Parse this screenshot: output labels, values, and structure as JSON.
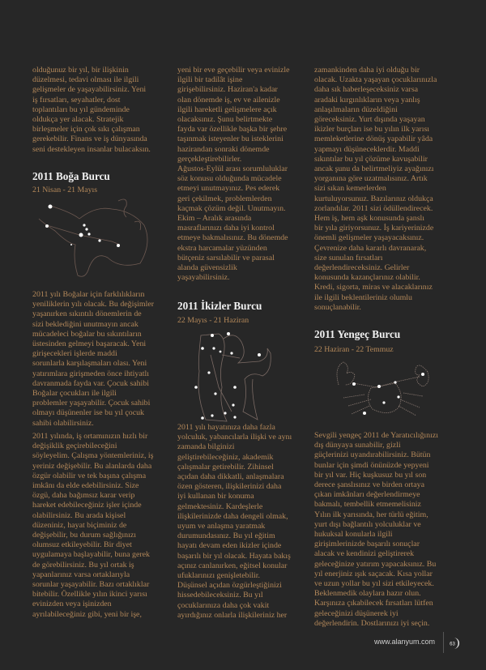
{
  "col1": {
    "intro": [
      "olduğunuz bir yıl, bir ilişkinin",
      "düzelmesi, tedavi olması ile ilgili",
      "gelişmeler de yaşayabilirsiniz.  Yeni",
      "iş fırsatları, seyahatler, dost",
      "toplantıları bu yıl gündeminde",
      "oldukça yer alacak. Stratejik",
      "birleşmeler için çok sıkı çalışman",
      "gerekebilir. Finans ve iş dünyasında",
      "seni destekleyen insanlar bulacaksın."
    ],
    "heading": "2011 Boğa Burcu",
    "dates": "21 Nisan - 21 Mayıs",
    "p1": [
      "2011 yılı Boğalar için farklılıkların",
      "yeniliklerin yılı olacak. Bu değişimler",
      "yaşanırken sıkıntılı dönemlerin de",
      "sizi beklediğini unutmayın ancak",
      "mücadeleci boğalar bu sıkıntıların",
      "üstesinden gelmeyi başaracak. Yeni",
      "girişecekleri işlerde maddi",
      "sorunlarla karşılaşmaları olası. Yeni",
      "yatırımlara girişmeden önce ihtiyatlı",
      "davranmada fayda var. Çocuk sahibi",
      "Boğalar çocukları ile ilgili",
      "problemler yaşayabilir.  Çocuk sahibi",
      "olmayı düşünenler ise bu yıl çocuk",
      "sahibi olabilirsiniz."
    ],
    "p2": [
      "2011 yılında, iş ortamınızın hızlı bir",
      "değişiklik geçirebileceğini",
      "söyleyelim. Çalışma yöntemleriniz, iş",
      "yeriniz değişebilir. Bu alanlarda daha",
      "özgür olabilir ve tek başına çalışma",
      "imkânı da elde edebilirsiniz. Size",
      "özgü, daha bağımsız karar verip",
      "hareket edebileceğiniz işler içinde",
      "olabilirsiniz. Bu arada kişisel",
      "düzeniniz,  hayat biçiminiz de",
      "değişebilir, bu durum sağlığınızı",
      "olumsuz etkileyebilir. Bir diyet",
      "uygulamaya başlayabilir, buna gerek",
      "de görebilirsiniz. Bu yıl ortak iş",
      "yapanlarınız varsa ortaklarıyla",
      "sorunlar yaşayabilir. Bazı ortaklıklar",
      "bitebilir. Özellikle yılın ikinci yarısı",
      "evinizden veya işinizden",
      "ayrılabileceğiniz gibi, yeni bir işe,"
    ]
  },
  "col2": {
    "intro": [
      "yeni bir eve geçebilir veya evinizle",
      "ilgili bir tadilât işine",
      "girişebilirsiniz. Haziran'a kadar",
      "olan dönemde iş, ev ve ailenizle",
      "ilgili hareketli gelişmelere açık",
      "olacaksınız. Şunu belirtmekte",
      "fayda var özellikle başka bir şehre",
      "taşınmak isteyenler bu isteklerini",
      "hazirandan sonraki dönemde",
      "gerçekleştirebilirler.",
      "Ağustos-Eylül arası sorumluluklar",
      "söz konusu olduğunda mücadele",
      "etmeyi unutmayınız. Pes ederek",
      "geri çekilmek, problemlerden",
      "kaçmak çözüm değil. Unutmayın.",
      " Ekim – Aralık arasında",
      "masraflarınızı daha iyi kontrol",
      "etmeye bakmalısınız. Bu dönemde",
      "ekstra harcamalar yüzünden",
      "bütçeniz sarsılabilir ve parasal",
      "alanda güvensizlik",
      "yaşayabilirsiniz."
    ],
    "heading": "2011 İkizler Burcu",
    "dates": "22 Mayıs - 21 Haziran",
    "p1": [
      "2011 yılı hayatınıza daha fazla",
      "yolculuk, yabancılarla ilişki ve aynı",
      "zamanda bilginizi",
      "geliştirebileceğiniz, akademik",
      "çalışmalar getirebilir. Zihinsel",
      "açıdan daha dikkatli, anlaşmalara",
      "özen gösteren, ilişkilerinizi daha",
      "iyi kullanan bir konuma",
      "gelmektesiniz. Kardeşlerle",
      "ilişkilerinizde daha dengeli olmak,",
      "uyum ve anlaşma yaratmak",
      "durumundasınız. Bu yıl eğitim",
      "hayatı devam eden ikizler içinde",
      "başarılı bir yıl olacak. Hayata bakış",
      "açınız canlanırken,  eğitsel konular",
      "ufuklarınızı genişletebilir.",
      "Düşünsel açıdan özgürleştiğinizi",
      "hissedebileceksiniz. Bu yıl",
      "çocuklarınıza daha çok vakit",
      "ayırdığınız onlarla ilişkileriniz her"
    ]
  },
  "col3": {
    "intro": [
      "zamankinden daha iyi olduğu bir",
      "olacak. Uzakta yaşayan çocuklarınızla",
      "daha sık haberleşeceksiniz varsa",
      "aradaki kırgınlıkların veya yanlış",
      "anlaşılmaların düzeldiğini",
      "göreceksiniz. Yurt dışında yaşayan",
      "ikizler burçları ise bu yılın ilk yarısı",
      "memleketlerine dönüş yapabilir yâda",
      "yapmayı düşüneceklerdir. Maddi",
      "sıkıntılar bu yıl çözüme kavuşabilir",
      "ancak şunu da belirtmeliyiz ayağınızı",
      "yorganına göre uzatmalısınız. Artık",
      "sizi sıkan kemerlerden",
      "kurtuluyorsunuz. Bazılarınız oldukça",
      "zorlandılar.  2011 sizi ödüllendirecek.",
      "Hem iş, hem aşk konusunda şanslı",
      "bir yıla giriyorsunuz. İş kariyerinizde",
      "önemli gelişmeler yaşayacaksınız.",
      "Çevrenize daha kararlı davranarak,",
      "size sunulan fırsatları",
      "değerlendireceksiniz. Gelirler",
      "konusunda kazançlarınız olabilir.",
      "Kredi, sigorta, miras ve alacaklarınız",
      "ile ilgili beklentileriniz olumlu",
      "sonuçlanabilir."
    ],
    "heading": "2011 Yengeç Burcu",
    "dates": "22 Haziran - 22 Temmuz",
    "p1": [
      "Sevgili yengeç 2011 de Yaratıcılığınızı",
      "dış dünyaya sunabilir,  gizli",
      "güçlerinizi uyandırabilirsiniz. Bütün",
      "bunlar için şimdi önünüzde yepyeni",
      "bir yıl var. Hiç kuşkusuz bu yıl son",
      "derece şanslısınız ve birden ortaya",
      "çıkan imkânları değerlendirmeye",
      "bakmalı, tembellik etmemelisiniz",
      "Yılın ilk yarısında, her türlü eğitim,",
      "yurt dışı bağlantılı yolculuklar ve",
      "hukuksal konularla ilgili",
      "girişimlerinizde başarılı sonuçlar",
      "alacak ve kendinizi geliştirerek",
      "geleceğinize yatırım yapacaksınız. Bu",
      "yıl enerjiniz ışık saçacak. Kısa yollar",
      "ve uzun yollar bu yıl sizi etkileyecek.",
      "Beklenmedik olaylara hazır olun.",
      "Karşınıza çıkabilecek fırsatları lütfen",
      "geleceğinizi düşünerek iyi",
      "değerlendirin. Dostlarınızı iyi seçin."
    ]
  },
  "images": {
    "taurus": "taurus-constellation",
    "gemini": "gemini-constellation",
    "cancer": "cancer-constellation"
  },
  "footer": {
    "url": "www.alanyum.com",
    "page_number": "63"
  },
  "colors": {
    "background": "#272727",
    "body_text": "#b5895a",
    "heading": "#f2f2f2"
  }
}
